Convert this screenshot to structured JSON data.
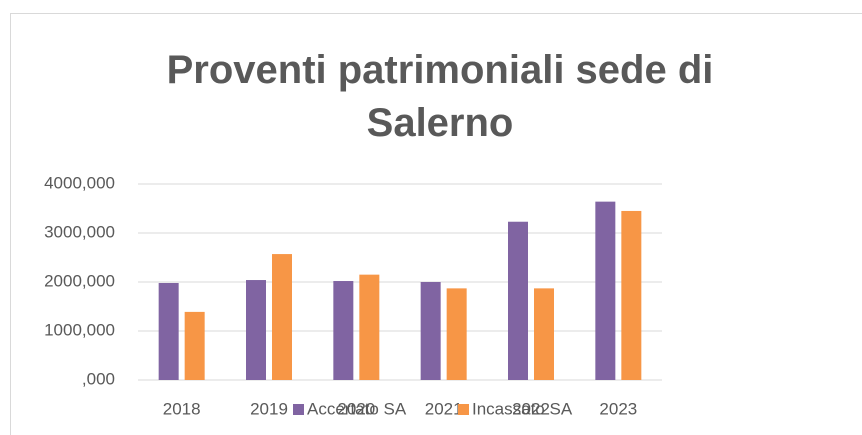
{
  "chart_data": {
    "type": "bar",
    "title": "Proventi patrimoniali sede di Salerno",
    "categories": [
      "2018",
      "2019",
      "2020",
      "2021",
      "2022",
      "2023"
    ],
    "series": [
      {
        "name": "Accertato SA",
        "color": "#8064a2",
        "values": [
          1980,
          2040,
          2020,
          2000,
          3230,
          3640
        ]
      },
      {
        "name": "Incassato SA",
        "color": "#f79646",
        "values": [
          1390,
          2570,
          2150,
          1870,
          1870,
          3450
        ]
      }
    ],
    "ylim": [
      0,
      4000
    ],
    "yticks": [
      {
        "value": 0,
        "label": ",000"
      },
      {
        "value": 1000,
        "label": "1000,000"
      },
      {
        "value": 2000,
        "label": "2000,000"
      },
      {
        "value": 3000,
        "label": "3000,000"
      },
      {
        "value": 4000,
        "label": "4000,000"
      }
    ],
    "grid": true,
    "legend": "bottom"
  }
}
